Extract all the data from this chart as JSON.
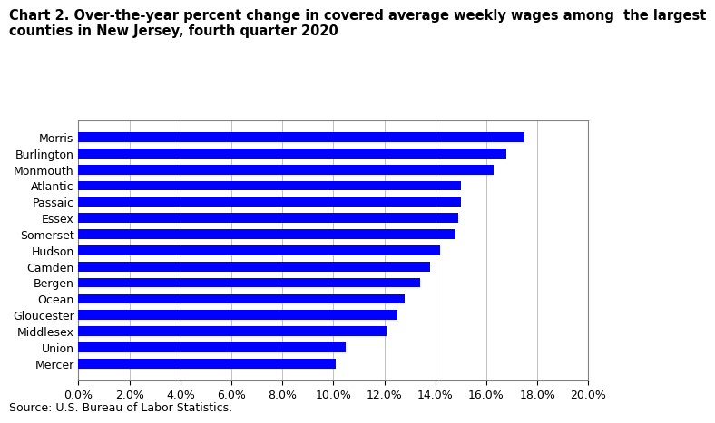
{
  "title_line1": "Chart 2. Over-the-year percent change in covered average weekly wages among  the largest",
  "title_line2": "counties in New Jersey, fourth quarter 2020",
  "counties": [
    "Mercer",
    "Union",
    "Middlesex",
    "Gloucester",
    "Ocean",
    "Bergen",
    "Camden",
    "Hudson",
    "Somerset",
    "Essex",
    "Passaic",
    "Atlantic",
    "Monmouth",
    "Burlington",
    "Morris"
  ],
  "values": [
    0.101,
    0.105,
    0.121,
    0.125,
    0.128,
    0.134,
    0.138,
    0.142,
    0.148,
    0.149,
    0.15,
    0.15,
    0.163,
    0.168,
    0.175
  ],
  "bar_color": "#0000FF",
  "xlim": [
    0,
    0.2
  ],
  "xticks": [
    0.0,
    0.02,
    0.04,
    0.06,
    0.08,
    0.1,
    0.12,
    0.14,
    0.16,
    0.18,
    0.2
  ],
  "source_text": "Source: U.S. Bureau of Labor Statistics.",
  "title_fontsize": 10.5,
  "tick_fontsize": 9,
  "bar_height": 0.6,
  "background_color": "#ffffff"
}
